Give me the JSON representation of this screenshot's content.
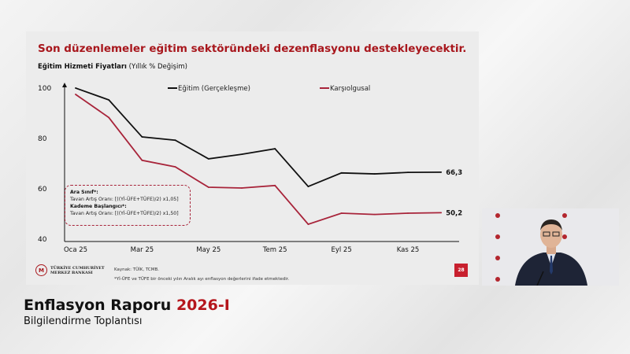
{
  "slide": {
    "title": "Son düzenlemeler eğitim sektöründeki dezenflasyonu destekleyecektir.",
    "subtitle_bold": "Eğitim Hizmeti Fiyatları",
    "subtitle_rest": "(Yıllık % Değişim)",
    "note": {
      "line1": "Ara Sınıf*:",
      "line2": "Tavan Artış Oranı: [((Yİ-ÜFE+TÜFE)/2) x1,05]",
      "line3": "Kademe Başlangıcı*:",
      "line4": "Tavan Artış Oranı: [((Yİ-ÜFE+TÜFE)/2) x1,50]"
    },
    "logo_line1": "TÜRKİYE CUMHURİYET",
    "logo_line2": "MERKEZ BANKASI",
    "source": "Kaynak: TÜİK, TCMB.",
    "footnote": "*Yİ-ÜFE ve TÜFE  bir önceki yılın Aralık ayı enflasyon değerlerini ifade etmektedir.",
    "page_number": "28"
  },
  "chart_data": {
    "type": "line",
    "title": "Eğitim Hizmeti Fiyatları (Yıllık % Değişim)",
    "x": [
      "Oca 25",
      "Şub 25",
      "Mar 25",
      "Nis 25",
      "May 25",
      "Haz 25",
      "Tem 25",
      "Ağu 25",
      "Eyl 25",
      "Eki 25",
      "Kas 25",
      "Ara 25"
    ],
    "xtick_labels": [
      "Oca 25",
      "Mar 25",
      "May 25",
      "Tem 25",
      "Eyl 25",
      "Kas 25"
    ],
    "ytick_labels": [
      "100",
      "80",
      "60",
      "40"
    ],
    "ylim": [
      40,
      100
    ],
    "grid": false,
    "legend_placement": "top",
    "series": [
      {
        "name": "Eğitim (Gerçekleşme)",
        "color": "#111111",
        "values": [
          99.7,
          95,
          80.3,
          79,
          71.6,
          73.4,
          75.6,
          60.6,
          66,
          65.6,
          66.2,
          66.3
        ],
        "end_label": "66,3"
      },
      {
        "name": "Karşıolgusal",
        "color": "#a8243a",
        "values": [
          97.2,
          88,
          71,
          68.4,
          60.3,
          60,
          61,
          45.6,
          50,
          49.5,
          50,
          50.2
        ],
        "end_label": "50,2"
      }
    ]
  },
  "footer": {
    "title": "Enflasyon Raporu",
    "edition": "2026-I",
    "subtitle": "Bilgilendirme Toplantısı"
  }
}
